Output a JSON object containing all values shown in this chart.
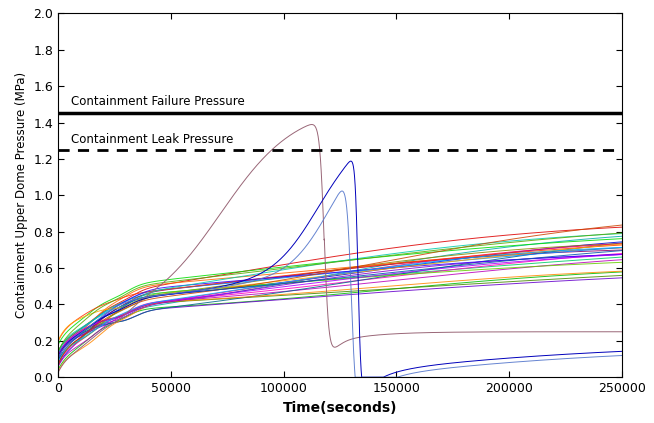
{
  "title": "",
  "xlabel": "Time(seconds)",
  "ylabel": "Containment Upper Dome Pressure (MPa)",
  "xlim": [
    0,
    250000
  ],
  "ylim": [
    0.0,
    2.0
  ],
  "yticks": [
    0.0,
    0.2,
    0.4,
    0.6,
    0.8,
    1.0,
    1.2,
    1.4,
    1.6,
    1.8,
    2.0
  ],
  "xticks": [
    0,
    50000,
    100000,
    150000,
    200000,
    250000
  ],
  "xtick_labels": [
    "0",
    "50000",
    "100000",
    "150000",
    "200000",
    "250000"
  ],
  "failure_pressure": 1.45,
  "leak_pressure": 1.25,
  "failure_label": "Containment Failure Pressure",
  "leak_label": "Containment Leak Pressure",
  "background_color": "#ffffff",
  "line_color_pool": [
    "#00bb00",
    "#0000dd",
    "#dd0000",
    "#00aaaa",
    "#bb00bb",
    "#888800",
    "#ff6600",
    "#6600cc",
    "#00cc66",
    "#ff00bb",
    "#448800",
    "#006688",
    "#880066",
    "#ff8800",
    "#0088ff",
    "#66cc00",
    "#ff0066",
    "#8800cc",
    "#00dd00",
    "#ff3300",
    "#3300ff",
    "#00ccaa",
    "#aa00ff",
    "#ffaa00",
    "#00aaff",
    "#cc4400",
    "#0055aa",
    "#55aa00",
    "#aa0055",
    "#005555",
    "#cc00cc",
    "#aacc00"
  ]
}
